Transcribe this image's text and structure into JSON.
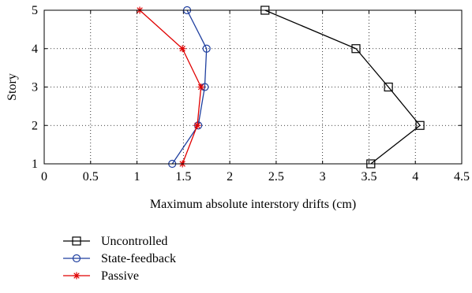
{
  "chart_data": {
    "type": "line",
    "orientation": "profile",
    "title": "",
    "xlabel": "Maximum absolute interstory drifts (cm)",
    "ylabel": "Story",
    "xlim": [
      0,
      4.5
    ],
    "ylim": [
      1,
      5
    ],
    "xticks": [
      "0",
      "0.5",
      "1",
      "1.5",
      "2",
      "2.5",
      "3",
      "3.5",
      "4",
      "4.5"
    ],
    "yticks": [
      "1",
      "2",
      "3",
      "4",
      "5"
    ],
    "grid": "dotted",
    "legend_position": "below-left",
    "series": [
      {
        "name": "Uncontrolled",
        "color": "#000000",
        "marker": "square",
        "points": [
          {
            "story": 1,
            "drift": 3.52
          },
          {
            "story": 2,
            "drift": 4.05
          },
          {
            "story": 3,
            "drift": 3.71
          },
          {
            "story": 4,
            "drift": 3.36
          },
          {
            "story": 5,
            "drift": 2.38
          }
        ]
      },
      {
        "name": "State-feedback",
        "color": "#1f3f9f",
        "marker": "circle",
        "points": [
          {
            "story": 1,
            "drift": 1.38
          },
          {
            "story": 2,
            "drift": 1.66
          },
          {
            "story": 3,
            "drift": 1.73
          },
          {
            "story": 4,
            "drift": 1.75
          },
          {
            "story": 5,
            "drift": 1.54
          }
        ]
      },
      {
        "name": "Passive",
        "color": "#e00000",
        "marker": "star",
        "points": [
          {
            "story": 1,
            "drift": 1.49
          },
          {
            "story": 2,
            "drift": 1.65
          },
          {
            "story": 3,
            "drift": 1.69
          },
          {
            "story": 4,
            "drift": 1.49
          },
          {
            "story": 5,
            "drift": 1.03
          }
        ]
      }
    ]
  }
}
